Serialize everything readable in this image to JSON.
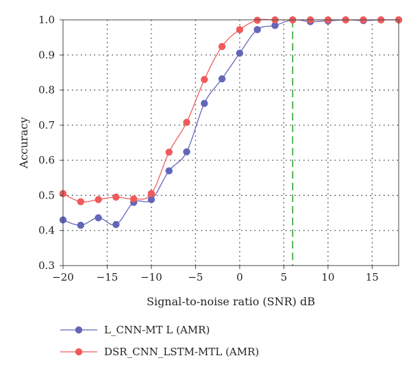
{
  "chart_data": {
    "type": "line",
    "title": "",
    "xlabel": "Signal-to-noise ratio (SNR) dB",
    "ylabel": "Accuracy",
    "xlim": [
      -20,
      18
    ],
    "ylim": [
      0.3,
      1.0
    ],
    "xticks": [
      -20,
      -15,
      -10,
      -5,
      0,
      5,
      10,
      15
    ],
    "yticks": [
      0.3,
      0.4,
      0.5,
      0.6,
      0.7,
      0.8,
      0.9,
      1.0
    ],
    "xtick_labels": [
      "−20",
      "−15",
      "−10",
      "−5",
      "0",
      "5",
      "10",
      "15"
    ],
    "ytick_labels": [
      "0.3",
      "0.4",
      "0.5",
      "0.6",
      "0.7",
      "0.8",
      "0.9",
      "1.0"
    ],
    "grid": true,
    "legend_position": "below",
    "reference_line": {
      "x": 6,
      "color": "#2ca02c",
      "style": "dashed"
    },
    "x": [
      -20,
      -18,
      -16,
      -14,
      -12,
      -10,
      -8,
      -6,
      -4,
      -2,
      0,
      2,
      4,
      6,
      8,
      10,
      12,
      14,
      16,
      18
    ],
    "series": [
      {
        "name": "L_CNN-MT L (AMR)",
        "color": "#6366b8",
        "values": [
          0.43,
          0.415,
          0.436,
          0.417,
          0.48,
          0.488,
          0.57,
          0.624,
          0.762,
          0.832,
          0.905,
          0.972,
          0.984,
          1.0,
          0.995,
          0.997,
          1.0,
          0.998,
          1.0,
          1.0
        ]
      },
      {
        "name": "DSR_CNN_LSTM-MTL (AMR)",
        "color": "#ef5b5b",
        "values": [
          0.505,
          0.482,
          0.488,
          0.495,
          0.49,
          0.505,
          0.623,
          0.708,
          0.83,
          0.924,
          0.972,
          0.999,
          1.0,
          1.0,
          1.0,
          1.0,
          1.0,
          1.0,
          1.0,
          1.0
        ]
      }
    ]
  }
}
